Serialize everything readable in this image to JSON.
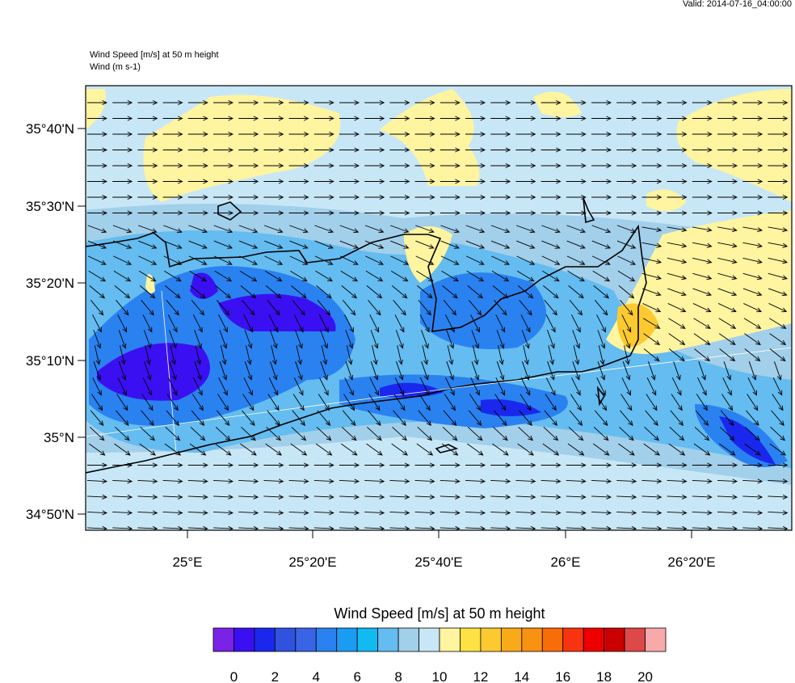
{
  "header": {
    "valid": "Valid: 2014-07-16_04:00:00",
    "title": "Wind Speed [m/s] at 50 m height",
    "subtitle": "Wind   (m s-1)"
  },
  "map": {
    "lat_labels": [
      "35°40'N",
      "35°30'N",
      "35°20'N",
      "35°10'N",
      "35°N",
      "34°50'N"
    ],
    "lon_labels": [
      "25°E",
      "25°20'E",
      "25°40'E",
      "26°E",
      "26°20'E"
    ]
  },
  "colorbar": {
    "title": "Wind Speed [m/s] at 50 m height",
    "labels": [
      0,
      2,
      4,
      6,
      8,
      10,
      12,
      14,
      16,
      18,
      20
    ],
    "colors": [
      "#7a22e6",
      "#3a10f2",
      "#1a28ee",
      "#3052de",
      "#3a64e6",
      "#2a82f0",
      "#1a9cf2",
      "#12baf2",
      "#64bcf0",
      "#a2cfea",
      "#c8e7f6",
      "#fff4a0",
      "#fee244",
      "#fcca30",
      "#f8aa18",
      "#f89212",
      "#f86c0a",
      "#f83410",
      "#ee0000",
      "#cc0000",
      "#dd4848",
      "#f8aaaa"
    ]
  }
}
